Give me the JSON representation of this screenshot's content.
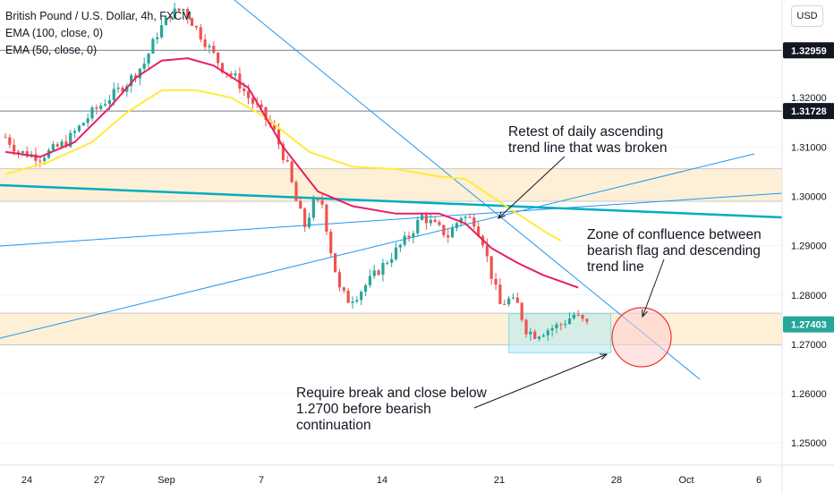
{
  "header": {
    "title": "British Pound / U.S. Dollar, 4h, FXCM",
    "indicators": [
      "EMA (100, close, 0)",
      "EMA (50, close, 0)"
    ],
    "currency_button": "USD"
  },
  "colors": {
    "candle_up": "#26a69a",
    "candle_down": "#ef5350",
    "ema100": "#ffeb3b",
    "ema50": "#e91e63",
    "trendline": "#2196f3",
    "flag_line": "#00acc1",
    "zone": "#fdebc8",
    "target_circle": "#e53935",
    "badge": "#131722",
    "last_price_badge": "#26a69a"
  },
  "chart_data": {
    "type": "candlestick",
    "symbol": "GBPUSD",
    "timeframe": "4h",
    "ylim": [
      1.2455,
      1.3398
    ],
    "x_ticks": [
      "24",
      "27",
      "Sep",
      "7",
      "14",
      "21",
      "28",
      "Oct",
      "6"
    ],
    "y_ticks": [
      "1.32000",
      "1.31000",
      "1.30000",
      "1.29000",
      "1.28000",
      "1.27000",
      "1.26000",
      "1.25000"
    ],
    "price_badges": [
      "1.32959",
      "1.31728",
      "1.27403"
    ],
    "horizontal_levels": [
      1.32959,
      1.31728
    ],
    "zones": [
      {
        "low": 1.299,
        "high": 1.3056
      },
      {
        "low": 1.2699,
        "high": 1.2763
      }
    ],
    "price_path": [
      [
        0,
        1.312
      ],
      [
        3,
        1.309
      ],
      [
        8,
        1.308
      ],
      [
        14,
        1.311
      ],
      [
        20,
        1.317
      ],
      [
        24,
        1.32
      ],
      [
        28,
        1.323
      ],
      [
        32,
        1.327
      ],
      [
        35,
        1.333
      ],
      [
        38,
        1.337
      ],
      [
        41,
        1.338
      ],
      [
        44,
        1.334
      ],
      [
        47,
        1.33
      ],
      [
        50,
        1.326
      ],
      [
        53,
        1.324
      ],
      [
        56,
        1.32
      ],
      [
        59,
        1.317
      ],
      [
        62,
        1.313
      ],
      [
        65,
        1.306
      ],
      [
        67,
        1.299
      ],
      [
        69,
        1.294
      ],
      [
        71,
        1.2985
      ],
      [
        73,
        1.2985
      ],
      [
        75,
        1.289
      ],
      [
        77,
        1.281
      ],
      [
        79,
        1.279
      ],
      [
        81,
        1.28
      ],
      [
        84,
        1.283
      ],
      [
        87,
        1.286
      ],
      [
        90,
        1.289
      ],
      [
        93,
        1.292
      ],
      [
        96,
        1.296
      ],
      [
        99,
        1.294
      ],
      [
        102,
        1.292
      ],
      [
        105,
        1.296
      ],
      [
        108,
        1.295
      ],
      [
        110,
        1.291
      ],
      [
        112,
        1.284
      ],
      [
        114,
        1.278
      ],
      [
        116,
        1.279
      ],
      [
        118,
        1.278
      ],
      [
        120,
        1.273
      ],
      [
        122,
        1.272
      ],
      [
        125,
        1.273
      ],
      [
        128,
        1.274
      ],
      [
        131,
        1.276
      ],
      [
        134,
        1.274
      ]
    ],
    "ema100_path": [
      [
        0,
        1.3045
      ],
      [
        10,
        1.307
      ],
      [
        20,
        1.311
      ],
      [
        28,
        1.317
      ],
      [
        36,
        1.3215
      ],
      [
        44,
        1.3215
      ],
      [
        52,
        1.32
      ],
      [
        60,
        1.316
      ],
      [
        70,
        1.309
      ],
      [
        80,
        1.306
      ],
      [
        90,
        1.3055
      ],
      [
        100,
        1.304
      ],
      [
        106,
        1.3035
      ],
      [
        112,
        1.3
      ],
      [
        118,
        1.2965
      ],
      [
        124,
        1.293
      ],
      [
        128,
        1.291
      ]
    ],
    "ema50_path": [
      [
        0,
        1.309
      ],
      [
        8,
        1.308
      ],
      [
        16,
        1.311
      ],
      [
        24,
        1.318
      ],
      [
        30,
        1.324
      ],
      [
        36,
        1.3275
      ],
      [
        42,
        1.328
      ],
      [
        48,
        1.3265
      ],
      [
        56,
        1.322
      ],
      [
        64,
        1.31
      ],
      [
        72,
        1.301
      ],
      [
        80,
        1.298
      ],
      [
        90,
        1.2965
      ],
      [
        100,
        1.2965
      ],
      [
        106,
        1.2945
      ],
      [
        112,
        1.2895
      ],
      [
        118,
        1.2865
      ],
      [
        124,
        1.284
      ],
      [
        132,
        1.2815
      ]
    ],
    "annotations": [
      {
        "lines": [
          "Retest of daily ascending",
          "trend line that was broken"
        ]
      },
      {
        "lines": [
          "Zone of confluence between",
          "bearish flag and descending",
          "trend line"
        ]
      },
      {
        "lines": [
          "Require break and close below",
          "1.2700 before bearish",
          "continuation"
        ]
      }
    ]
  }
}
